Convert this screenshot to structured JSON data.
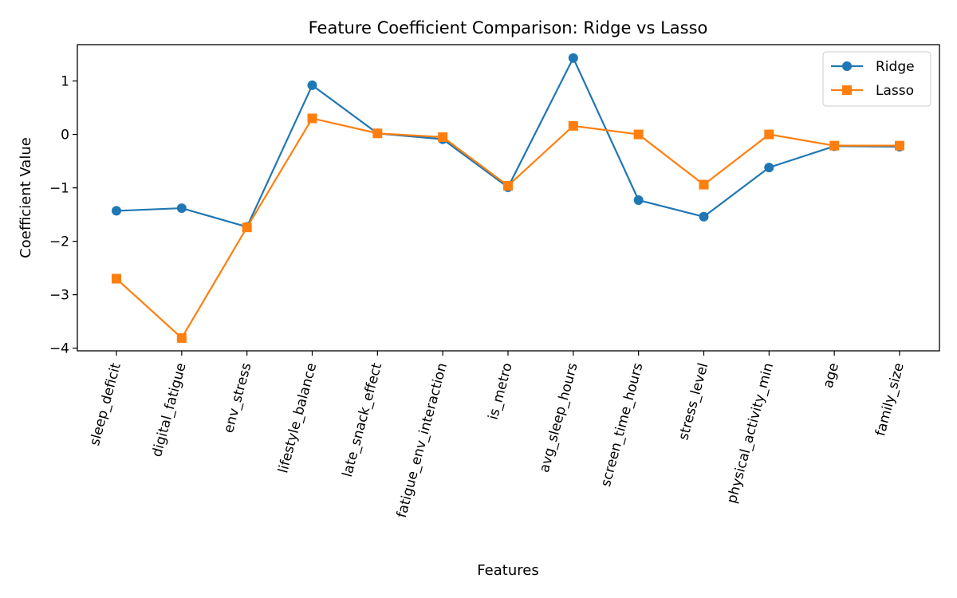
{
  "chart_data": {
    "type": "line",
    "title": "Feature Coefficient Comparison: Ridge vs Lasso",
    "xlabel": "Features",
    "ylabel": "Coefficient Value",
    "categories": [
      "sleep_deficit",
      "digital_fatigue",
      "env_stress",
      "lifestyle_balance",
      "late_snack_effect",
      "fatigue_env_interaction",
      "is_metro",
      "avg_sleep_hours",
      "screen_time_hours",
      "stress_level",
      "physical_activity_min",
      "age",
      "family_size"
    ],
    "ylim": [
      -4.05,
      1.68
    ],
    "yticks": [
      -4,
      -3,
      -2,
      -1,
      0,
      1
    ],
    "grid": false,
    "legend_position": "top-right",
    "series": [
      {
        "name": "Ridge",
        "color": "#1f77b4",
        "marker": "circle",
        "values": [
          -1.43,
          -1.38,
          -1.73,
          0.92,
          0.02,
          -0.09,
          -0.99,
          1.43,
          -1.23,
          -1.54,
          -0.62,
          -0.22,
          -0.23
        ]
      },
      {
        "name": "Lasso",
        "color": "#ff7f0e",
        "marker": "square",
        "values": [
          -2.7,
          -3.81,
          -1.74,
          0.3,
          0.02,
          -0.05,
          -0.96,
          0.16,
          0.0,
          -0.94,
          0.0,
          -0.21,
          -0.21
        ]
      }
    ]
  }
}
